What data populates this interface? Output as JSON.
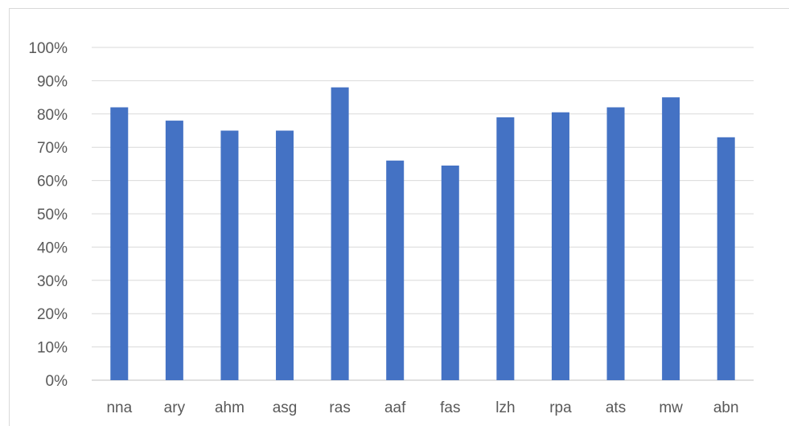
{
  "chart_data": {
    "type": "bar",
    "categories": [
      "nna",
      "ary",
      "ahm",
      "asg",
      "ras",
      "aaf",
      "fas",
      "lzh",
      "rpa",
      "ats",
      "mw",
      "abn"
    ],
    "values": [
      82,
      78,
      75,
      75,
      88,
      66,
      64.5,
      79,
      80.5,
      82,
      85,
      73
    ],
    "ylim": [
      0,
      100
    ],
    "y_ticks": [
      "0%",
      "10%",
      "20%",
      "30%",
      "40%",
      "50%",
      "60%",
      "70%",
      "80%",
      "90%",
      "100%"
    ],
    "grid": true,
    "bar_color": "#4472c4"
  }
}
